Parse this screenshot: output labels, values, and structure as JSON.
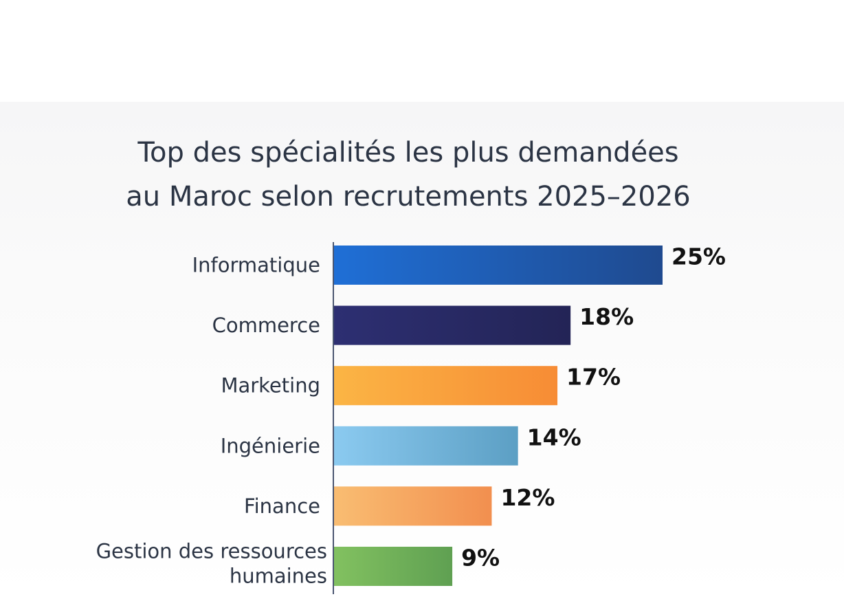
{
  "chart_data": {
    "type": "bar",
    "orientation": "horizontal",
    "title": [
      "Top des spécialités les plus demandées",
      "au Maroc selon recrutements 2025–2026"
    ],
    "categories": [
      "Informatique",
      "Commerce",
      "Marketing",
      "Ingénierie",
      "Finance",
      "Gestion des ressources humaines"
    ],
    "category_lines": [
      [
        "Informatique"
      ],
      [
        "Commerce"
      ],
      [
        "Marketing"
      ],
      [
        "Ingénierie"
      ],
      [
        "Finance"
      ],
      [
        "Gestion des ressources",
        "humaines"
      ]
    ],
    "values": [
      25,
      18,
      17,
      14,
      12,
      9
    ],
    "value_labels": [
      "25%",
      "18%",
      "17%",
      "14%",
      "12%",
      "9%"
    ],
    "bar_colors": [
      [
        "#1f6fd6",
        "#1f4a8f"
      ],
      [
        "#2d2f72",
        "#232456"
      ],
      [
        "#fbb545",
        "#f78c35"
      ],
      [
        "#8bcaf0",
        "#5c9fc4"
      ],
      [
        "#f9bd72",
        "#f28f4f"
      ],
      [
        "#82c160",
        "#5fa052"
      ]
    ],
    "xlim": [
      0,
      25
    ],
    "grid": false,
    "legend": "none"
  }
}
